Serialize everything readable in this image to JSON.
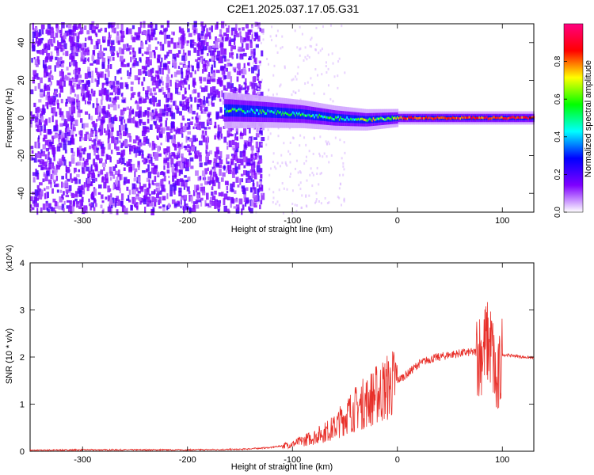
{
  "title": "C2E1.2025.037.17.05.G31",
  "chart_data": [
    {
      "type": "heatmap",
      "xlabel": "Height of straight line (km)",
      "ylabel": "Frequency (Hz)",
      "xlim": [
        -350,
        130
      ],
      "ylim": [
        -50,
        50
      ],
      "xticks": [
        -300,
        -200,
        -100,
        0,
        100
      ],
      "yticks": [
        -40,
        -20,
        0,
        20,
        40
      ],
      "grid": false,
      "colorbar": {
        "label": "Normalized spectral amplitude",
        "range": [
          0,
          1
        ],
        "ticks": [
          0.0,
          0.2,
          0.4,
          0.6,
          0.8
        ],
        "colormap": [
          "#ffffff",
          "#7f00ff",
          "#0000ff",
          "#00ffff",
          "#00ff00",
          "#ffff00",
          "#ff0000",
          "#ff0080"
        ]
      },
      "signal_band": {
        "center_freq": [
          {
            "x": -160,
            "y": 4
          },
          {
            "x": -120,
            "y": 3
          },
          {
            "x": -90,
            "y": 2
          },
          {
            "x": -60,
            "y": 0
          },
          {
            "x": -30,
            "y": -1
          },
          {
            "x": 0,
            "y": 0
          },
          {
            "x": 50,
            "y": 0
          },
          {
            "x": 130,
            "y": 0
          }
        ]
      }
    },
    {
      "type": "line",
      "xlabel": "Height of straight line (km)",
      "ylabel": "SNR (10 * v/v)",
      "y_multiplier": "(x10^4)",
      "xlim": [
        -350,
        130
      ],
      "ylim": [
        0,
        4
      ],
      "xticks": [
        -300,
        -200,
        -100,
        0,
        100
      ],
      "yticks": [
        0,
        1,
        2,
        3,
        4
      ],
      "color": "#e8302a",
      "grid": false,
      "series": [
        {
          "x": [
            -350,
            -300,
            -250,
            -200,
            -150,
            -120,
            -100,
            -80,
            -60,
            -50,
            -40,
            -30,
            -20,
            -10,
            0,
            10,
            20,
            30,
            40,
            50,
            60,
            70,
            80,
            85,
            90,
            95,
            100,
            110,
            120,
            130
          ],
          "y": [
            0.02,
            0.03,
            0.03,
            0.03,
            0.04,
            0.08,
            0.15,
            0.3,
            0.5,
            0.75,
            0.9,
            1.05,
            1.2,
            1.35,
            1.5,
            1.65,
            1.85,
            1.95,
            2.0,
            2.05,
            2.08,
            2.1,
            2.1,
            2.3,
            2.2,
            1.2,
            2.05,
            2.03,
            2.0,
            1.98
          ]
        }
      ]
    }
  ]
}
